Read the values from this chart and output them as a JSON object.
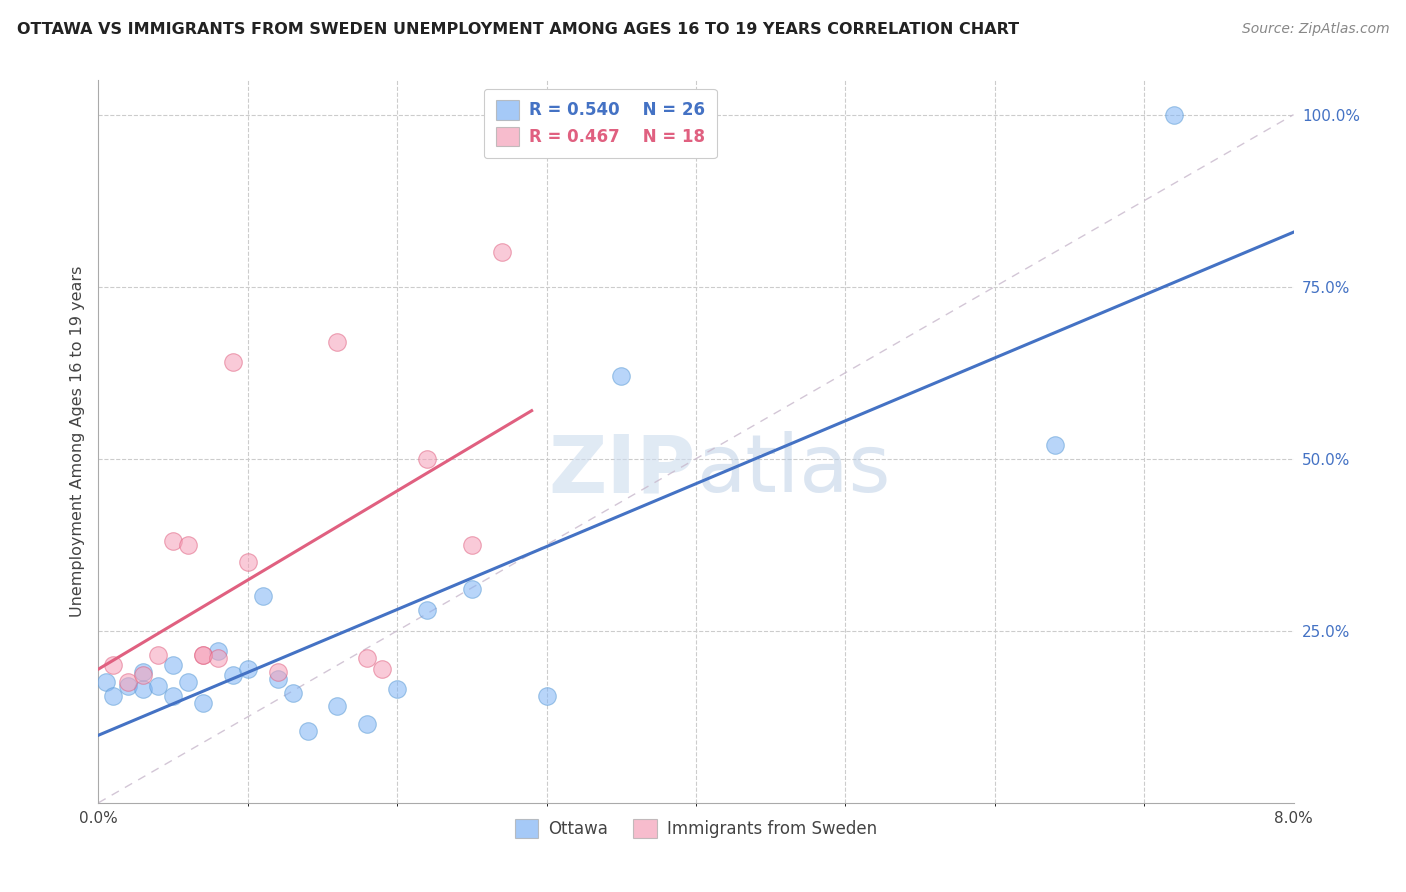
{
  "title": "OTTAWA VS IMMIGRANTS FROM SWEDEN UNEMPLOYMENT AMONG AGES 16 TO 19 YEARS CORRELATION CHART",
  "source": "Source: ZipAtlas.com",
  "ylabel": "Unemployment Among Ages 16 to 19 years",
  "xlim": [
    0.0,
    0.08
  ],
  "ylim": [
    0.0,
    1.05
  ],
  "ottawa_color": "#7fb3f5",
  "ottawa_edge_color": "#5b9bd5",
  "sweden_color": "#f5a0b8",
  "sweden_edge_color": "#e06080",
  "trendline_ottawa_color": "#4472c4",
  "trendline_sweden_color": "#e06080",
  "diagonal_color": "#c8b8cc",
  "watermark_color": "#dce8f8",
  "legend_R_ottawa": "0.540",
  "legend_N_ottawa": "26",
  "legend_R_sweden": "0.467",
  "legend_N_sweden": "18",
  "legend_color_ottawa": "#4472c4",
  "legend_color_sweden": "#e06080",
  "ottawa_x": [
    0.0005,
    0.001,
    0.002,
    0.003,
    0.003,
    0.004,
    0.005,
    0.005,
    0.006,
    0.007,
    0.008,
    0.009,
    0.01,
    0.011,
    0.012,
    0.013,
    0.014,
    0.016,
    0.018,
    0.02,
    0.022,
    0.025,
    0.03,
    0.035,
    0.064,
    0.072
  ],
  "ottawa_y": [
    0.175,
    0.155,
    0.17,
    0.165,
    0.19,
    0.17,
    0.2,
    0.155,
    0.175,
    0.145,
    0.22,
    0.185,
    0.195,
    0.3,
    0.18,
    0.16,
    0.105,
    0.14,
    0.115,
    0.165,
    0.28,
    0.31,
    0.155,
    0.62,
    0.52,
    1.0
  ],
  "sweden_x": [
    0.001,
    0.002,
    0.003,
    0.004,
    0.005,
    0.006,
    0.007,
    0.007,
    0.008,
    0.009,
    0.01,
    0.012,
    0.016,
    0.018,
    0.019,
    0.022,
    0.025,
    0.027
  ],
  "sweden_y": [
    0.2,
    0.175,
    0.185,
    0.215,
    0.38,
    0.375,
    0.215,
    0.215,
    0.21,
    0.64,
    0.35,
    0.19,
    0.67,
    0.21,
    0.195,
    0.5,
    0.375,
    0.8
  ]
}
